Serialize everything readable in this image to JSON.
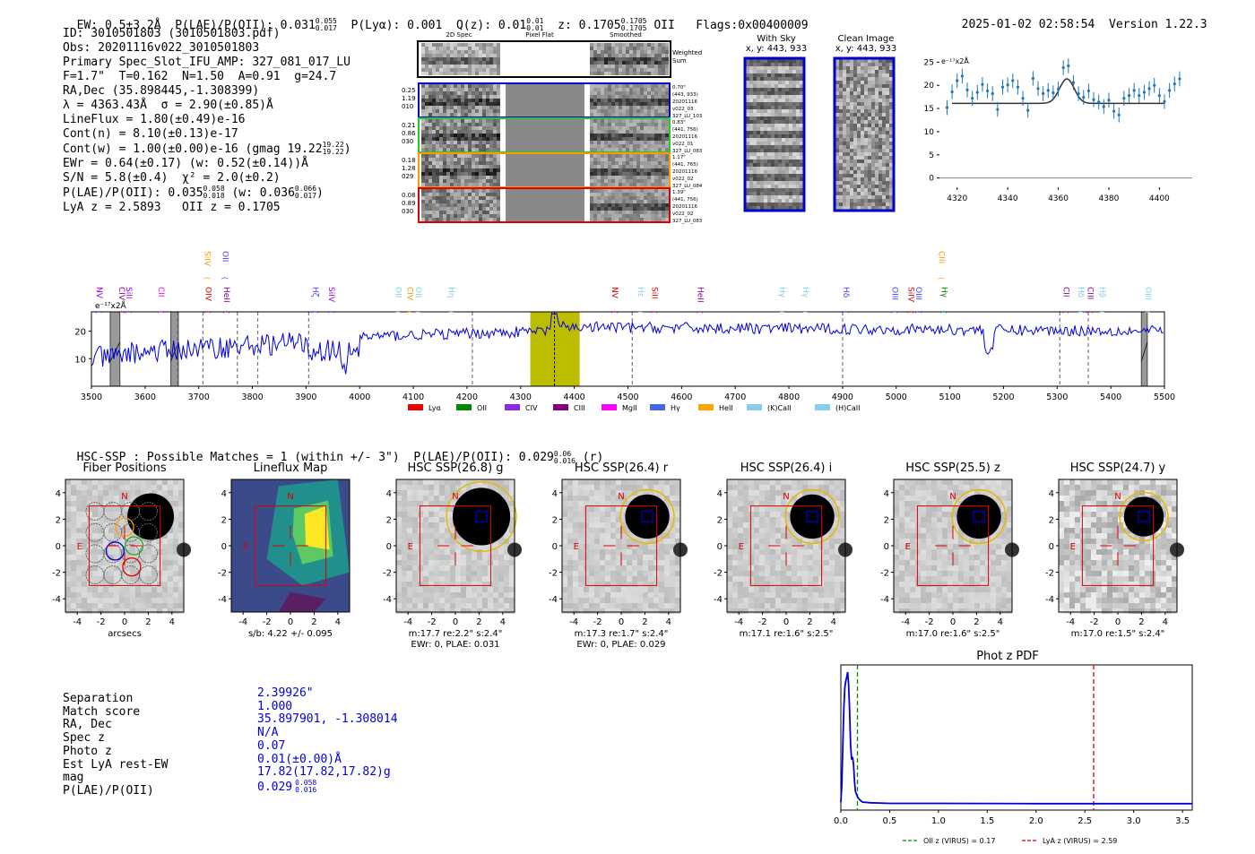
{
  "header": {
    "ew": "EW: 0.5±3.2Å",
    "plae_label": "P(LAE)/P(OII): 0.031",
    "plae_hi": "0.055",
    "plae_lo": "0.017",
    "plya": "P(Lyα): 0.001",
    "qz_label": "Q(z): 0.01",
    "qz_hi": "0.01",
    "qz_lo": "0.01",
    "z_label": "z: 0.1705",
    "z_hi": "0.1705",
    "z_lo": "0.1705",
    "z_line": "OII",
    "flags": "Flags:0x00400009",
    "timestamp": "2025-01-02 02:58:54",
    "version": "Version 1.22.3"
  },
  "info": {
    "lines": [
      "ID: 3010501803 (3010501803.pdf)",
      "Obs: 20201116v022_3010501803",
      "Primary Spec_Slot_IFU_AMP: 327_081_017_LU",
      "F=1.7\"  T=0.162  N=1.50  A=0.91  g=24.7",
      "RA,Dec (35.898445,-1.308399)",
      "λ = 4363.43Å  σ = 2.90(±0.85)Å",
      "LineFlux = 1.80(±0.49)e-16",
      "Cont(n) = 8.10(±0.13)e-17"
    ],
    "contw": "Cont(w) = 1.00(±0.00)e-16 (gmag 19.22",
    "contw_hi": "19.22",
    "contw_lo": "19.22",
    "ewr": "EWr = 0.64(±0.17) (w: 0.52(±0.14))Å",
    "sn": "S/N = 5.8(±0.4)  χ² = 2.0(±0.2)",
    "plae": "P(LAE)/P(OII): 0.035",
    "plae_hi": "0.058",
    "plae_lo": "0.018",
    "plae_w": "(w: 0.036",
    "plae_w_hi": "0.066",
    "plae_w_lo": "0.017",
    "lyaz": "LyA z = 2.5893   OII z = 0.1705"
  },
  "cutouts": {
    "col_labels": [
      "2D Spec",
      "Pixel Flat",
      "Smoothed"
    ],
    "weighted": "Weighted Sum",
    "rows": [
      {
        "left": [
          "0.25",
          "1.19",
          "010"
        ],
        "right": [
          "0.70\"",
          "(443, 933)",
          "20201116",
          "v022_03",
          "327_LU_103"
        ],
        "color": "#0000dd"
      },
      {
        "left": [
          "0.21",
          "0.86",
          "030"
        ],
        "right": [
          "0.83\"",
          "(441, 756)",
          "20201116",
          "v022_01",
          "327_LU_083"
        ],
        "color": "#22cc22"
      },
      {
        "left": [
          "0.18",
          "1.28",
          "029"
        ],
        "right": [
          "1.17\"",
          "(441, 765)",
          "20201116",
          "v022_02",
          "327_LU_084"
        ],
        "color": "#ff9900"
      },
      {
        "left": [
          "0.08",
          "0.89",
          "030"
        ],
        "right": [
          "1.39\"",
          "(441, 756)",
          "20201116",
          "v022_02",
          "327_LU_083"
        ],
        "color": "#dd0000"
      }
    ],
    "with_sky": "With Sky",
    "with_sky_xy": "x, y: 443, 933",
    "clean": "Clean Image",
    "clean_xy": "x, y: 443, 933"
  },
  "zoom_chart": {
    "type": "scatter",
    "ylabel": "e⁻¹⁷x2Å",
    "xticks": [
      4320,
      4340,
      4360,
      4380,
      4400
    ],
    "yticks": [
      0,
      5,
      10,
      15,
      20,
      25
    ],
    "xlim": [
      4313,
      4413
    ],
    "ylim": [
      -2,
      27
    ],
    "points": [
      [
        4316,
        15.2
      ],
      [
        4318,
        18.6
      ],
      [
        4320,
        21.0
      ],
      [
        4322,
        22.0
      ],
      [
        4324,
        19.0
      ],
      [
        4326,
        17.2
      ],
      [
        4328,
        18.5
      ],
      [
        4330,
        20.2
      ],
      [
        4332,
        18.8
      ],
      [
        4334,
        18.2
      ],
      [
        4336,
        14.8
      ],
      [
        4338,
        19.6
      ],
      [
        4340,
        20.1
      ],
      [
        4342,
        21.0
      ],
      [
        4344,
        19.6
      ],
      [
        4346,
        17.2
      ],
      [
        4348,
        14.6
      ],
      [
        4350,
        21.5
      ],
      [
        4352,
        19.3
      ],
      [
        4354,
        18.2
      ],
      [
        4356,
        18.9
      ],
      [
        4358,
        18.4
      ],
      [
        4360,
        19.2
      ],
      [
        4362,
        23.8
      ],
      [
        4364,
        24.2
      ],
      [
        4366,
        20.6
      ],
      [
        4368,
        18.2
      ],
      [
        4370,
        17.4
      ],
      [
        4372,
        18.8
      ],
      [
        4374,
        16.9
      ],
      [
        4376,
        16.4
      ],
      [
        4378,
        15.4
      ],
      [
        4380,
        16.8
      ],
      [
        4382,
        14.4
      ],
      [
        4384,
        13.6
      ],
      [
        4386,
        17.2
      ],
      [
        4388,
        17.8
      ],
      [
        4390,
        18.9
      ],
      [
        4392,
        17.8
      ],
      [
        4394,
        18.5
      ],
      [
        4396,
        19.3
      ],
      [
        4398,
        20.0
      ],
      [
        4400,
        17.8
      ],
      [
        4402,
        16.5
      ],
      [
        4404,
        18.9
      ],
      [
        4406,
        20.3
      ],
      [
        4408,
        21.4
      ]
    ],
    "fit": {
      "base": 16.1,
      "amp": 5.3,
      "center": 4363.4,
      "sigma": 2.9
    }
  },
  "spectrum": {
    "ylabel": "e⁻¹⁷x2Å",
    "xticks": [
      3500,
      3600,
      3700,
      3800,
      3900,
      4000,
      4100,
      4200,
      4300,
      4400,
      4500,
      4600,
      4700,
      4800,
      4900,
      5000,
      5100,
      5200,
      5300,
      5400,
      5500
    ],
    "yticks": [
      10,
      20
    ],
    "xlim": [
      3500,
      5500
    ],
    "ylim": [
      0,
      27
    ],
    "highlight_range": [
      4318,
      4410
    ],
    "marker_line": 4363,
    "masked_ranges": [
      [
        3535,
        3553
      ],
      [
        3648,
        3662
      ],
      [
        5457,
        5468
      ]
    ],
    "dashed_lines": [
      3660,
      3708,
      3772,
      3810,
      3905,
      4210,
      4508,
      4900,
      5305,
      5358
    ],
    "line_labels": [
      {
        "text": "NV",
        "x": 3505,
        "color": "#8b00ff",
        "high": false
      },
      {
        "text": "CIV",
        "x": 3547,
        "color": "#8b008b",
        "high": false
      },
      {
        "text": "SiII",
        "x": 3560,
        "color": "#8b00ff",
        "high": false
      },
      {
        "text": "CII",
        "x": 3620,
        "color": "#ff00ff",
        "high": false
      },
      {
        "text": "SiIV",
        "x": 3706,
        "color": "#ff9900",
        "high": true
      },
      {
        "text": "OIV",
        "x": 3708,
        "color": "#dd0000",
        "high": false
      },
      {
        "text": "OII",
        "x": 3740,
        "color": "#4444ff",
        "high": true
      },
      {
        "text": "HeII",
        "x": 3742,
        "color": "#8b008b",
        "high": false
      },
      {
        "text": "Hζ",
        "x": 3908,
        "color": "#4444ff",
        "high": false
      },
      {
        "text": "SiIV",
        "x": 3938,
        "color": "#8b00ff",
        "high": false
      },
      {
        "text": "OII",
        "x": 4062,
        "color": "#87ceeb",
        "high": false
      },
      {
        "text": "CIV",
        "x": 4084,
        "color": "#ff9900",
        "high": false
      },
      {
        "text": "OII",
        "x": 4100,
        "color": "#87ceeb",
        "high": false
      },
      {
        "text": "Hη",
        "x": 4162,
        "color": "#87ceeb",
        "high": false
      },
      {
        "text": "NV",
        "x": 4466,
        "color": "#dd0000",
        "high": false
      },
      {
        "text": "Hε",
        "x": 4514,
        "color": "#87ceeb",
        "high": false
      },
      {
        "text": "SiII",
        "x": 4540,
        "color": "#dd0000",
        "high": false
      },
      {
        "text": "HeII",
        "x": 4625,
        "color": "#8b008b",
        "high": false
      },
      {
        "text": "Hγ",
        "x": 4778,
        "color": "#87ceeb",
        "high": false
      },
      {
        "text": "Hγ",
        "x": 4822,
        "color": "#87ceeb",
        "high": false
      },
      {
        "text": "Hδ",
        "x": 4897,
        "color": "#4444ff",
        "high": false
      },
      {
        "text": "OIII",
        "x": 4988,
        "color": "#4444ff",
        "high": false
      },
      {
        "text": "SiIV",
        "x": 5018,
        "color": "#dd0000",
        "high": false
      },
      {
        "text": "OIII",
        "x": 5032,
        "color": "#4444ff",
        "high": false
      },
      {
        "text": "CIII",
        "x": 5075,
        "color": "#ff9900",
        "high": true
      },
      {
        "text": "Hγ",
        "x": 5080,
        "color": "#008800",
        "high": false
      },
      {
        "text": "CII",
        "x": 5307,
        "color": "#8b008b",
        "high": false
      },
      {
        "text": "Hδ",
        "x": 5335,
        "color": "#87ceeb",
        "high": false
      },
      {
        "text": "CIII",
        "x": 5352,
        "color": "#8b008b",
        "high": false
      },
      {
        "text": "Hβ",
        "x": 5375,
        "color": "#87ceeb",
        "high": false
      },
      {
        "text": "OIII",
        "x": 5460,
        "color": "#87ceeb",
        "high": false
      }
    ],
    "legend": [
      {
        "label": "Lyα",
        "color": "#ee0000"
      },
      {
        "label": "OII",
        "color": "#008800"
      },
      {
        "label": "CIV",
        "color": "#8a2be2"
      },
      {
        "label": "CIII",
        "color": "#800080"
      },
      {
        "label": "MgII",
        "color": "#ff00ff"
      },
      {
        "label": "Hγ",
        "color": "#4169e1"
      },
      {
        "label": "HeII",
        "color": "#ffa500"
      },
      {
        "label": "(K)CaII",
        "color": "#87ceeb"
      },
      {
        "label": "(H)CaII",
        "color": "#87ceeb"
      }
    ]
  },
  "hsc": {
    "title": "HSC-SSP : Possible Matches = 1 (within +/- 3\")  P(LAE)/P(OII): 0.029",
    "title_hi": "0.06",
    "title_lo": "0.016",
    "title_band": "(r)",
    "panels": [
      {
        "title": "Fiber Positions",
        "cap1": "arcsecs",
        "cap2": "",
        "kind": "fiber"
      },
      {
        "title": "Lineflux Map",
        "cap1": "s/b: 4.22 +/- 0.095",
        "cap2": "",
        "kind": "flux"
      },
      {
        "title": "HSC SSP(26.8) g",
        "cap1": "m:17.7  re:2.2\"  s:2.4\"",
        "cap2": "EWr: 0, PLAE: 0.031",
        "kind": "img",
        "blob": 1.3
      },
      {
        "title": "HSC SSP(26.4) r",
        "cap1": "m:17.3  re:1.7\"  s:2.4\"",
        "cap2": "EWr: 0, PLAE: 0.029",
        "kind": "img",
        "blob": 1.0
      },
      {
        "title": "HSC SSP(26.4) i",
        "cap1": "m:17.1  re:1.6\"  s:2.5\"",
        "cap2": "",
        "kind": "img",
        "blob": 1.0
      },
      {
        "title": "HSC SSP(25.5) z",
        "cap1": "m:17.0  re:1.6\"  s:2.5\"",
        "cap2": "",
        "kind": "img",
        "blob": 1.0
      },
      {
        "title": "HSC SSP(24.7) y",
        "cap1": "m:17.0  re:1.5\"  s:2.4\"",
        "cap2": "",
        "kind": "img",
        "blob": 0.9
      }
    ],
    "ticks": [
      "-4",
      "-2",
      "0",
      "2",
      "4"
    ],
    "n": "N",
    "e": "E"
  },
  "match": {
    "labels": [
      "Separation",
      "Match score",
      "RA, Dec",
      "Spec z",
      "Photo z",
      "Est LyA rest-EW",
      "mag",
      "P(LAE)/P(OII)"
    ],
    "values": [
      "2.39926\"",
      "1.000",
      "35.897901, -1.308014",
      "N/A",
      "0.07",
      "0.01(±0.00)Å",
      "17.82(17.82,17.82)g",
      "0.029"
    ],
    "plae_hi": "0.058",
    "plae_lo": "0.016"
  },
  "photz": {
    "title": "Phot z PDF",
    "xticks": [
      "0.0",
      "0.5",
      "1.0",
      "1.5",
      "2.0",
      "2.5",
      "3.0",
      "3.5"
    ],
    "xlim": [
      0,
      3.6
    ],
    "oii_z": 0.17,
    "lya_z": 2.59,
    "legend_oii": "OII z (VIRUS) = 0.17",
    "legend_lya": "LyA z (VIRUS) = 2.59",
    "pdf": [
      [
        0,
        0.02
      ],
      [
        0.01,
        0.15
      ],
      [
        0.02,
        0.45
      ],
      [
        0.03,
        0.72
      ],
      [
        0.04,
        0.88
      ],
      [
        0.05,
        0.93
      ],
      [
        0.06,
        0.96
      ],
      [
        0.07,
        1.0
      ],
      [
        0.08,
        0.9
      ],
      [
        0.09,
        0.7
      ],
      [
        0.1,
        0.45
      ],
      [
        0.11,
        0.34
      ],
      [
        0.12,
        0.36
      ],
      [
        0.13,
        0.3
      ],
      [
        0.14,
        0.18
      ],
      [
        0.15,
        0.1
      ],
      [
        0.17,
        0.06
      ],
      [
        0.19,
        0.04
      ],
      [
        0.22,
        0.02
      ],
      [
        0.3,
        0.015
      ],
      [
        0.5,
        0.01
      ],
      [
        1.0,
        0.01
      ],
      [
        2.0,
        0.008
      ],
      [
        3.0,
        0.008
      ],
      [
        3.6,
        0.008
      ]
    ]
  }
}
